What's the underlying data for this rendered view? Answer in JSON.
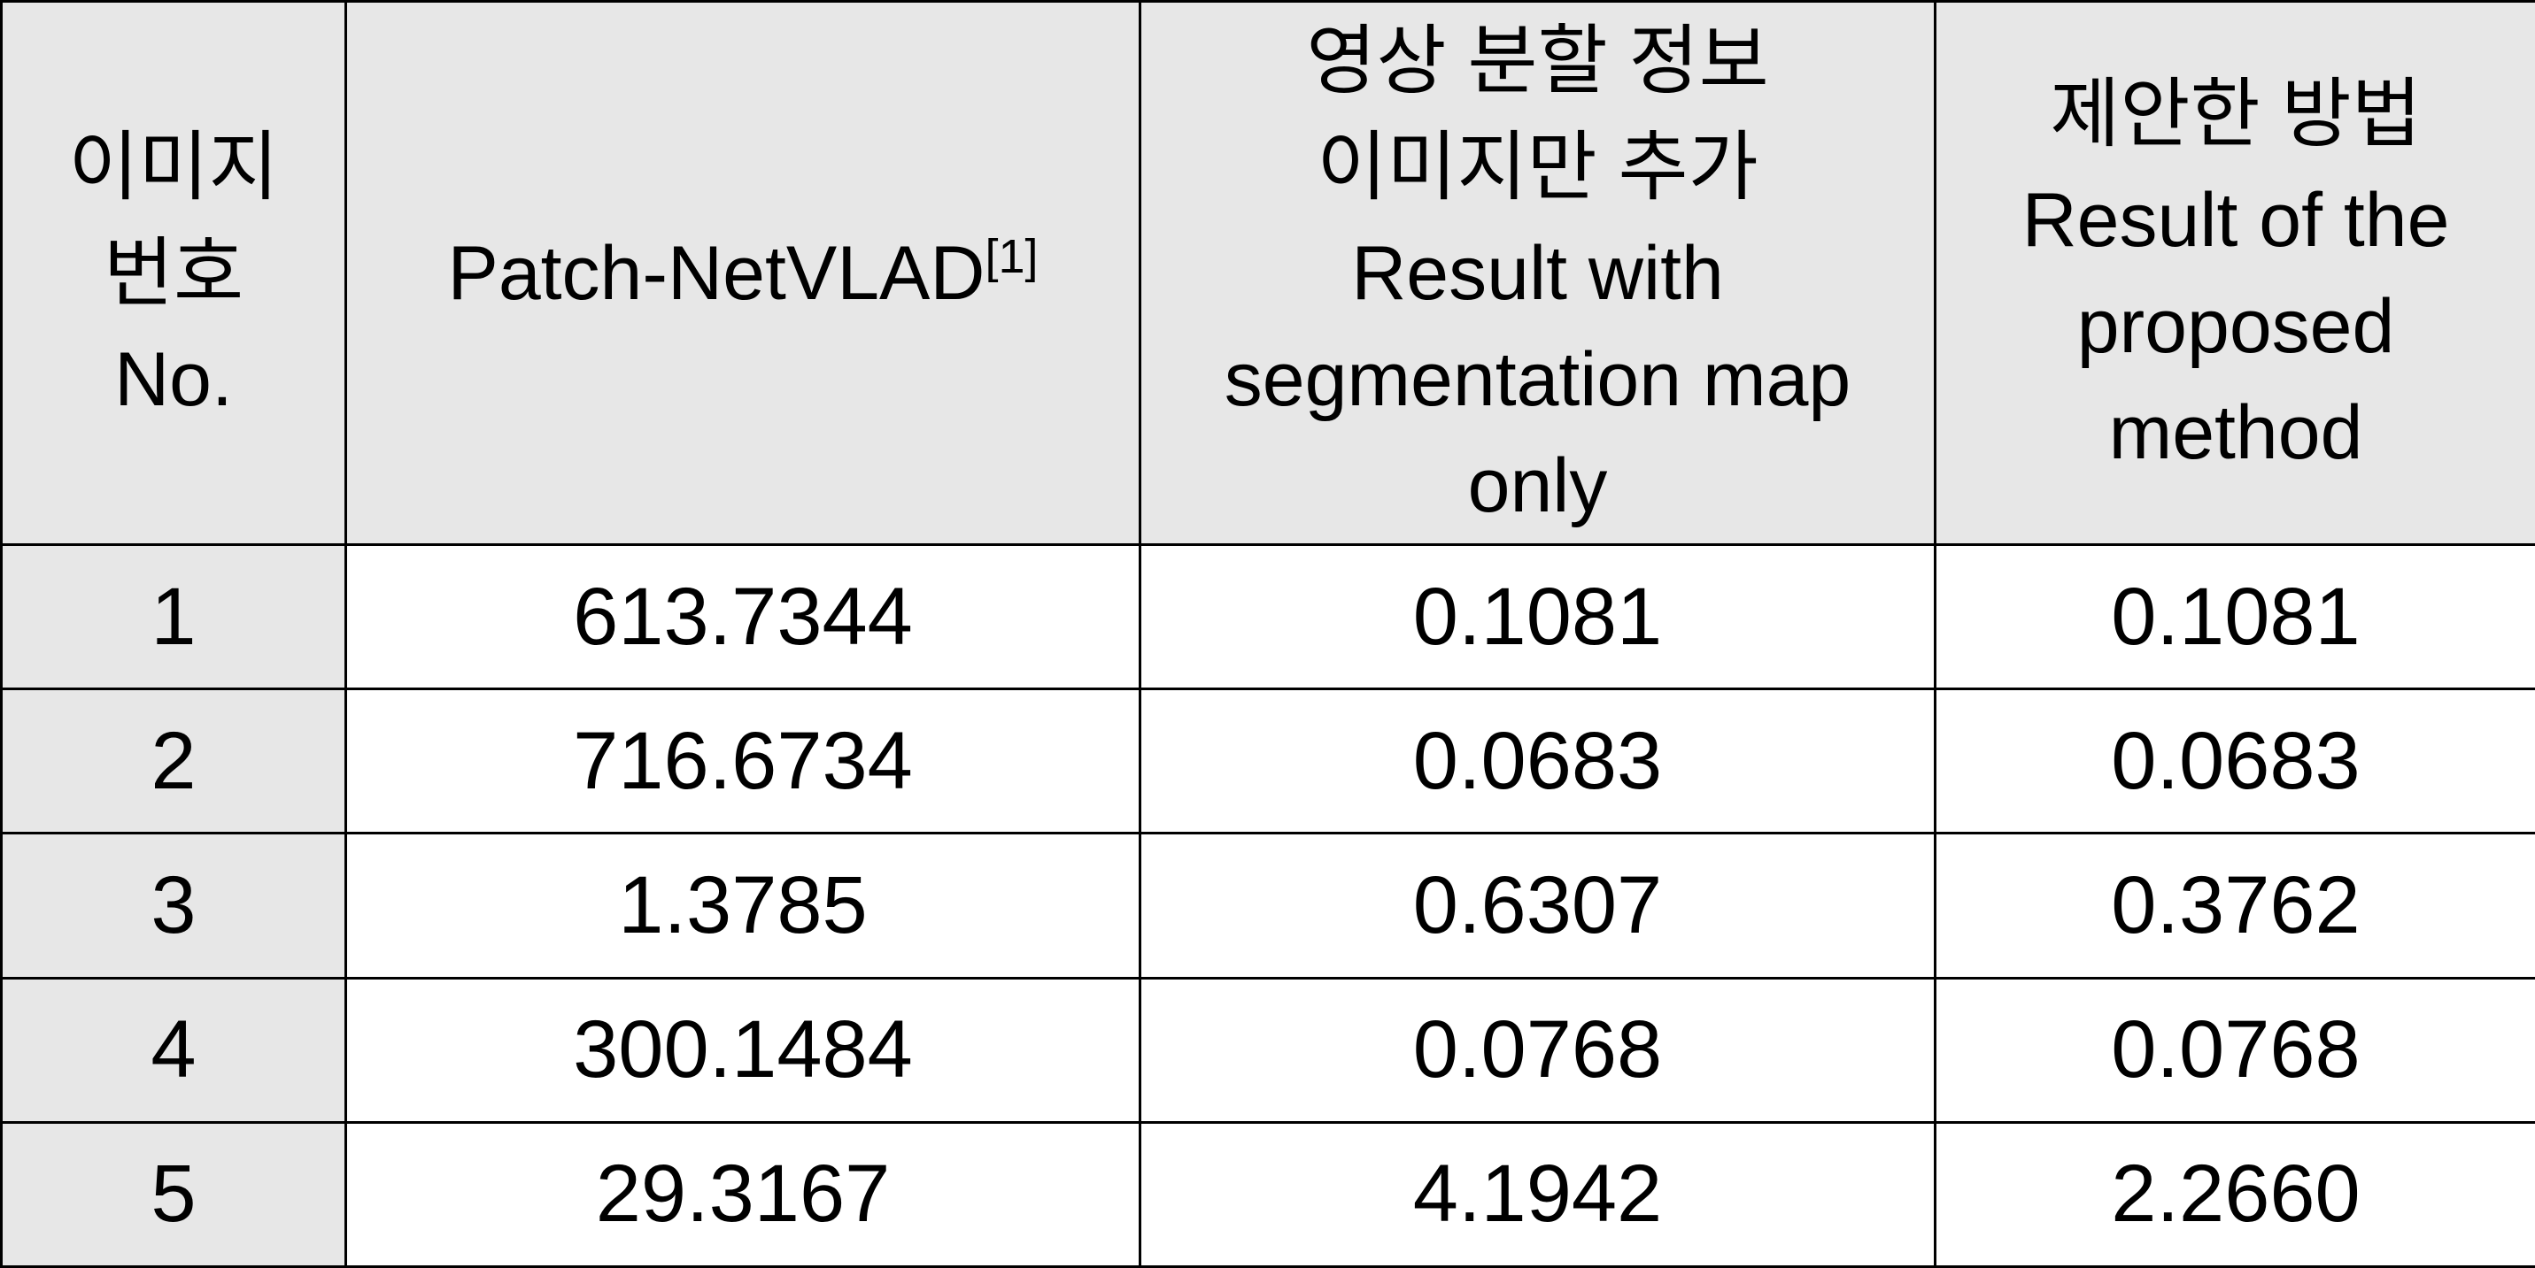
{
  "table": {
    "header": [
      {
        "lines": [
          "이미지",
          "번호",
          "No."
        ]
      },
      {
        "lines": [
          "Patch-NetVLAD"
        ],
        "sup": "[1]"
      },
      {
        "lines": [
          "영상 분할 정보",
          "이미지만 추가",
          "Result with",
          "segmentation map",
          "only"
        ]
      },
      {
        "lines": [
          "제안한 방법",
          "Result of the",
          "proposed",
          "method"
        ]
      }
    ],
    "rows": [
      [
        "1",
        "613.7344",
        "0.1081",
        "0.1081"
      ],
      [
        "2",
        "716.6734",
        "0.0683",
        "0.0683"
      ],
      [
        "3",
        "1.3785",
        "0.6307",
        "0.3762"
      ],
      [
        "4",
        "300.1484",
        "0.0768",
        "0.0768"
      ],
      [
        "5",
        "29.3167",
        "4.1942",
        "2.2660"
      ]
    ]
  }
}
